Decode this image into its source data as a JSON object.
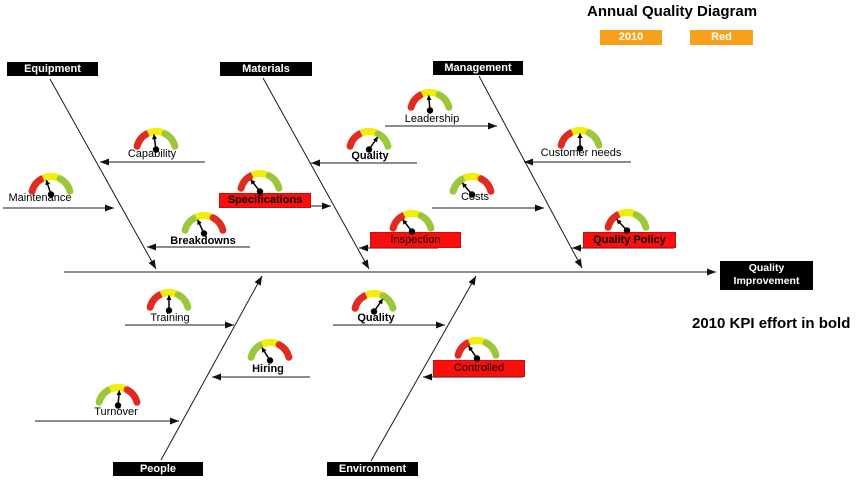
{
  "title": "Annual Quality Diagram",
  "legend": {
    "year_button": "2010",
    "color_button": "Red"
  },
  "note": "2010 KPI effort in bold",
  "effect": {
    "line1": "Quality",
    "line2": "Improvement"
  },
  "categories": {
    "equipment": {
      "label": "Equipment"
    },
    "materials": {
      "label": "Materials"
    },
    "management": {
      "label": "Management"
    },
    "people": {
      "label": "People"
    },
    "environment": {
      "label": "Environment"
    }
  },
  "factors": {
    "capability": {
      "label": "Capability",
      "category": "equipment",
      "kpi_2010_bold": false,
      "red_flag": false
    },
    "maintenance": {
      "label": "Maintenance",
      "category": "equipment",
      "kpi_2010_bold": false,
      "red_flag": false
    },
    "breakdowns": {
      "label": "Breakdowns",
      "category": "equipment",
      "kpi_2010_bold": true,
      "red_flag": false
    },
    "quality_materials": {
      "label": "Quality",
      "category": "materials",
      "kpi_2010_bold": true,
      "red_flag": false
    },
    "specifications": {
      "label": "Specifications",
      "category": "materials",
      "kpi_2010_bold": true,
      "red_flag": true
    },
    "inspection": {
      "label": "Inspection",
      "category": "materials",
      "kpi_2010_bold": false,
      "red_flag": true
    },
    "leadership": {
      "label": "Leadership",
      "category": "management",
      "kpi_2010_bold": false,
      "red_flag": false
    },
    "customer_needs": {
      "label": "Customer needs",
      "category": "management",
      "kpi_2010_bold": false,
      "red_flag": false
    },
    "costs": {
      "label": "Costs",
      "category": "management",
      "kpi_2010_bold": false,
      "red_flag": false
    },
    "quality_policy": {
      "label": "Quality Policy",
      "category": "management",
      "kpi_2010_bold": true,
      "red_flag": true
    },
    "training": {
      "label": "Training",
      "category": "people",
      "kpi_2010_bold": false,
      "red_flag": false
    },
    "hiring": {
      "label": "Hiring",
      "category": "people",
      "kpi_2010_bold": true,
      "red_flag": false
    },
    "turnover": {
      "label": "Turnover",
      "category": "people",
      "kpi_2010_bold": false,
      "red_flag": false
    },
    "quality_environment": {
      "label": "Quality",
      "category": "environment",
      "kpi_2010_bold": true,
      "red_flag": false
    },
    "controlled": {
      "label": "Controlled",
      "category": "environment",
      "kpi_2010_bold": false,
      "red_flag": true
    }
  },
  "colors": {
    "accent_orange": "#F7A01C",
    "flag_red_box": "#FA0F0F",
    "gauge_red": "#E02B20",
    "gauge_yellow": "#F2EE0B",
    "gauge_green": "#9DC73B",
    "box_black": "#000000"
  }
}
